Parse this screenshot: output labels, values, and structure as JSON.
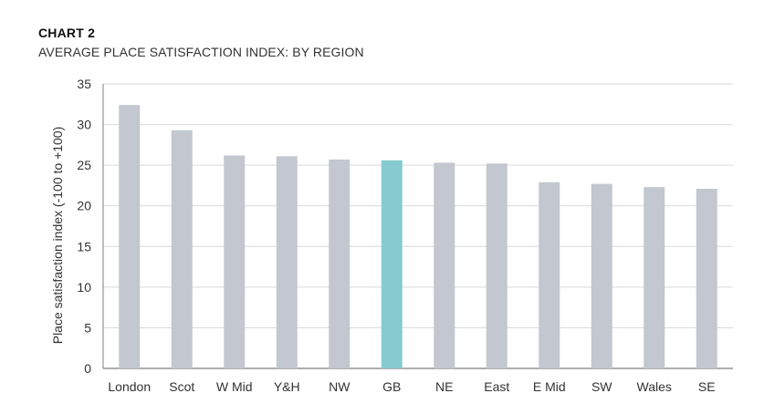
{
  "header": {
    "label": "CHART 2",
    "title": "AVERAGE PLACE SATISFACTION INDEX: BY REGION"
  },
  "colors": {
    "bar": "#c2c7d0",
    "highlight": "#85cbd0",
    "grid": "#d9d9d9",
    "axis": "#7f7f7f"
  },
  "chart_data": {
    "type": "bar",
    "title": "AVERAGE PLACE SATISFACTION INDEX: BY REGION",
    "xlabel": "",
    "ylabel": "Place satisfaction index (-100 to +100)",
    "ylim": [
      0,
      35
    ],
    "yticks": [
      0,
      5,
      10,
      15,
      20,
      25,
      30,
      35
    ],
    "grid": true,
    "highlight_category": "GB",
    "categories": [
      "London",
      "Scot",
      "W Mid",
      "Y&H",
      "NW",
      "GB",
      "NE",
      "East",
      "E Mid",
      "SW",
      "Wales",
      "SE"
    ],
    "values": [
      32.4,
      29.3,
      26.2,
      26.1,
      25.7,
      25.6,
      25.3,
      25.2,
      22.9,
      22.7,
      22.3,
      22.1
    ]
  }
}
